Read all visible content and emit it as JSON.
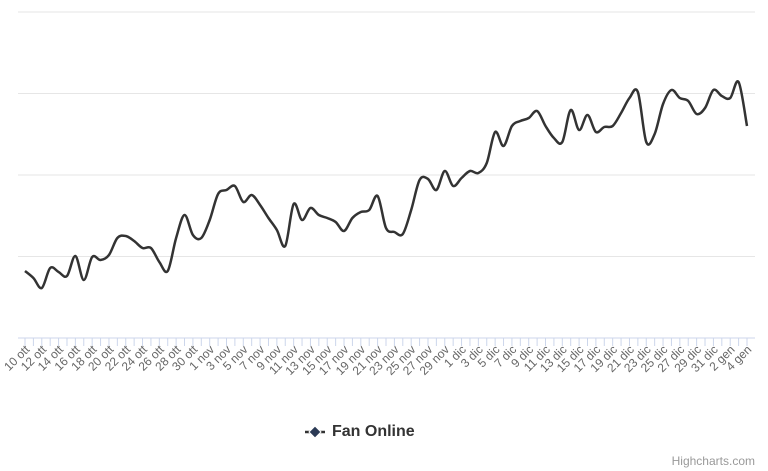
{
  "chart_data": {
    "type": "spline",
    "categories": [
      "10 ott",
      null,
      "12 ott",
      null,
      "14 ott",
      null,
      "16 ott",
      null,
      "18 ott",
      null,
      "20 ott",
      null,
      "22 ott",
      null,
      "24 ott",
      null,
      "26 ott",
      null,
      "28 ott",
      null,
      "30 ott",
      null,
      "1 nov",
      null,
      "3 nov",
      null,
      "5 nov",
      null,
      "7 nov",
      null,
      "9 nov",
      null,
      "11 nov",
      null,
      "13 nov",
      null,
      "15 nov",
      null,
      "17 nov",
      null,
      "19 nov",
      null,
      "21 nov",
      null,
      "23 nov",
      null,
      "25 nov",
      null,
      "27 nov",
      null,
      "29 nov",
      null,
      "1 dic",
      null,
      "3 dic",
      null,
      "5 dic",
      null,
      "7 dic",
      null,
      "9 dic",
      null,
      "11 dic",
      null,
      "13 dic",
      null,
      "15 dic",
      null,
      "17 dic",
      null,
      "19 dic",
      null,
      "21 dic",
      null,
      "23 dic",
      null,
      "25 dic",
      null,
      "27 dic",
      null,
      "29 dic",
      null,
      "31 dic",
      null,
      "2 gen",
      null,
      "4 gen"
    ],
    "series": [
      {
        "name": "Fan Online",
        "color": "#333333",
        "marker_color": "#2b3a55",
        "values": [
          67,
          60,
          50,
          70,
          66,
          62,
          82,
          58,
          81,
          78,
          83,
          100,
          102,
          97,
          90,
          90,
          76,
          67,
          100,
          123,
          103,
          100,
          118,
          144,
          148,
          152,
          136,
          143,
          133,
          120,
          108,
          92,
          134,
          118,
          130,
          123,
          120,
          116,
          107,
          120,
          126,
          128,
          142,
          110,
          106,
          104,
          128,
          158,
          159,
          148,
          167,
          152,
          160,
          167,
          165,
          175,
          206,
          192,
          212,
          217,
          220,
          227,
          212,
          200,
          196,
          228,
          208,
          223,
          206,
          211,
          212,
          225,
          240,
          246,
          196,
          204,
          234,
          248,
          240,
          237,
          224,
          230,
          248,
          242,
          240,
          256,
          212
        ]
      }
    ],
    "ylim": [
      0,
      326
    ],
    "ygrid": [
      0,
      81.5,
      163,
      244.5,
      326
    ],
    "grid": true,
    "credits": "Highcharts.com"
  }
}
